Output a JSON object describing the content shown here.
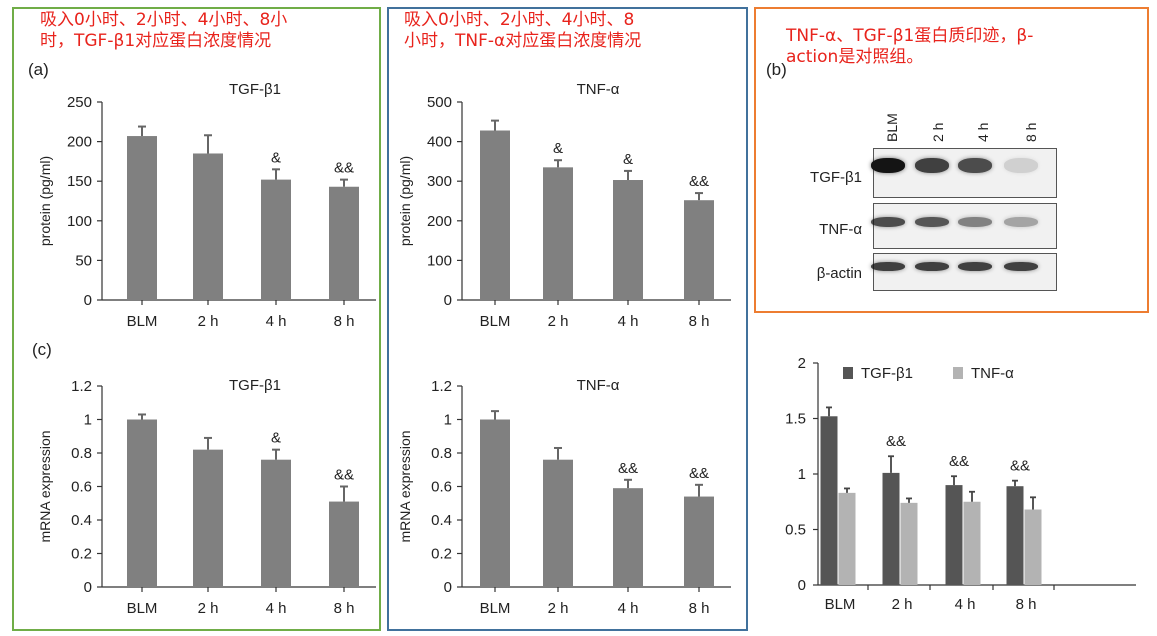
{
  "annotations": {
    "green_note": "吸入0小时、2小时、4小时、8小时，TGF-β1对应蛋白浓度情况",
    "green_note_line1": "吸入0小时、2小时、4小时、8小",
    "green_note_line2": "时，TGF-β1对应蛋白浓度情况",
    "blue_note_line1": "吸入0小时、2小时、4小时、8",
    "blue_note_line2": "小时，TNF-α对应蛋白浓度情况",
    "orange_note_line1": "TNF-α、TGF-β1蛋白质印迹，β-",
    "orange_note_line2": "action是对照组。"
  },
  "panel_labels": {
    "a": "(a)",
    "b": "(b)",
    "c": "(c)"
  },
  "colors": {
    "green": "#70ad47",
    "blue": "#41719c",
    "orange": "#ed7d31",
    "red": "#e8231c",
    "bar": "#808080",
    "dark_bar": "#555555",
    "light_bar": "#b3b3b3"
  },
  "blot": {
    "lanes": [
      "BLM",
      "2 h",
      "4 h",
      "8 h"
    ],
    "rows": [
      {
        "label": "TGF-β1",
        "intensity": [
          1.0,
          0.8,
          0.75,
          0.15
        ]
      },
      {
        "label": "TNF-α",
        "intensity": [
          0.75,
          0.7,
          0.5,
          0.35
        ]
      },
      {
        "label": "β-actin",
        "intensity": [
          0.8,
          0.8,
          0.8,
          0.8
        ]
      }
    ]
  },
  "chart_data": [
    {
      "id": "protein-tgf",
      "type": "bar",
      "title": "TGF-β1",
      "ylabel": "protein (pg/ml)",
      "categories": [
        "BLM",
        "2 h",
        "4 h",
        "8 h"
      ],
      "values": [
        207,
        185,
        152,
        143
      ],
      "errors": [
        12,
        23,
        13,
        9
      ],
      "annotations": [
        "",
        "",
        "&",
        "&&"
      ],
      "ylim": [
        0,
        250
      ],
      "yticks": [
        "0",
        "50",
        "100",
        "150",
        "200",
        "250"
      ]
    },
    {
      "id": "protein-tnf",
      "type": "bar",
      "title": "TNF-α",
      "ylabel": "protein (pg/ml)",
      "categories": [
        "BLM",
        "2 h",
        "4 h",
        "8 h"
      ],
      "values": [
        428,
        335,
        303,
        252
      ],
      "errors": [
        25,
        18,
        23,
        18
      ],
      "annotations": [
        "",
        "&",
        "&",
        "&&"
      ],
      "ylim": [
        0,
        500
      ],
      "yticks": [
        "0",
        "100",
        "200",
        "300",
        "400",
        "500"
      ]
    },
    {
      "id": "mrna-tgf",
      "type": "bar",
      "title": "TGF-β1",
      "ylabel": "mRNA expression",
      "categories": [
        "BLM",
        "2 h",
        "4 h",
        "8 h"
      ],
      "values": [
        1.0,
        0.82,
        0.76,
        0.51
      ],
      "errors": [
        0.03,
        0.07,
        0.06,
        0.09
      ],
      "annotations": [
        "",
        "",
        "&",
        "&&"
      ],
      "ylim": [
        0,
        1.2
      ],
      "yticks": [
        "0",
        "0.2",
        "0.4",
        "0.6",
        "0.8",
        "1",
        "1.2"
      ]
    },
    {
      "id": "mrna-tnf",
      "type": "bar",
      "title": "TNF-α",
      "ylabel": "mRNA expression",
      "categories": [
        "BLM",
        "2 h",
        "4 h",
        "8 h"
      ],
      "values": [
        1.0,
        0.76,
        0.59,
        0.54
      ],
      "errors": [
        0.05,
        0.07,
        0.05,
        0.07
      ],
      "annotations": [
        "",
        "",
        "&&",
        "&&"
      ],
      "ylim": [
        0,
        1.2
      ],
      "yticks": [
        "0",
        "0.2",
        "0.4",
        "0.6",
        "0.8",
        "1",
        "1.2"
      ]
    },
    {
      "id": "blot-quant",
      "type": "bar",
      "title": "",
      "ylabel": "",
      "categories": [
        "BLM",
        "2 h",
        "4 h",
        "8 h"
      ],
      "series": [
        {
          "name": "TGF-β1",
          "values": [
            1.52,
            1.01,
            0.9,
            0.89
          ],
          "errors": [
            0.08,
            0.15,
            0.08,
            0.05
          ],
          "color": "#555555"
        },
        {
          "name": "TNF-α",
          "values": [
            0.83,
            0.74,
            0.75,
            0.68
          ],
          "errors": [
            0.04,
            0.04,
            0.09,
            0.11
          ],
          "color": "#b3b3b3"
        }
      ],
      "annotations": [
        "",
        "&&",
        "&&",
        "&&"
      ],
      "ylim": [
        0,
        2
      ],
      "yticks": [
        "0",
        "0.5",
        "1",
        "1.5",
        "2"
      ],
      "legend": "top"
    }
  ]
}
